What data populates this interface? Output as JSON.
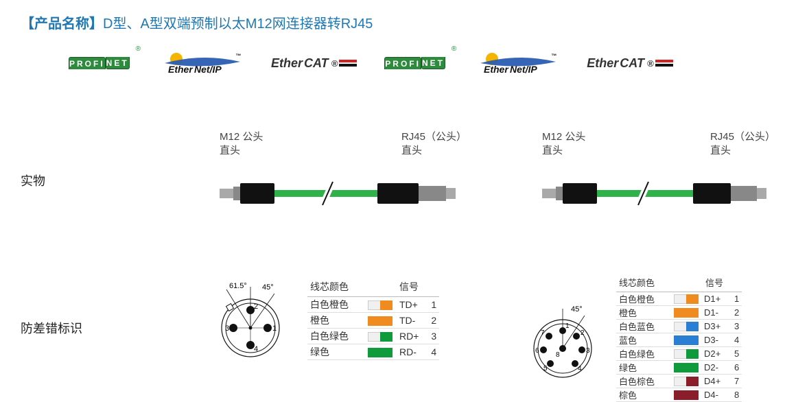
{
  "title": {
    "bracket_open": "【",
    "label": "产品名称",
    "bracket_close": "】",
    "text": "D型、A型双端预制以太M12网连接器转RJ45"
  },
  "brand_color": "#1f77b4",
  "logos": [
    {
      "type": "profinet",
      "top": "PROFI",
      "bot": "NET",
      "color": "#2e8b3d"
    },
    {
      "type": "ethernetip",
      "text1": "Ether",
      "text2": "Net/IP",
      "swoosh": "#2a5db0",
      "globe": "#f4b400"
    },
    {
      "type": "ethercat",
      "text1": "Ether",
      "text2": "CAT",
      "red": "#d32020"
    },
    {
      "type": "profinet",
      "top": "PROFI",
      "bot": "NET",
      "color": "#2e8b3d"
    },
    {
      "type": "ethernetip",
      "text1": "Ether",
      "text2": "Net/IP",
      "swoosh": "#2a5db0",
      "globe": "#f4b400"
    },
    {
      "type": "ethercat",
      "text1": "Ether",
      "text2": "CAT",
      "red": "#d32020"
    }
  ],
  "section_labels": {
    "product": "实物",
    "pinout": "防差错标识"
  },
  "cables": [
    {
      "left": {
        "l1": "M12 公头",
        "l2": "直头"
      },
      "right": {
        "l1": "RJ45（公头）",
        "l2": "直头"
      },
      "cable_color": "#2fb24a",
      "connector_color": "#111",
      "metal_color": "#a9a9a9"
    },
    {
      "left": {
        "l1": "M12 公头",
        "l2": "直头"
      },
      "right": {
        "l1": "RJ45（公头）",
        "l2": "直头"
      },
      "cable_color": "#2fb24a",
      "connector_color": "#111",
      "metal_color": "#a9a9a9"
    }
  ],
  "pinout_a": {
    "angles": [
      "61.5°",
      "45°"
    ],
    "pins": [
      2,
      1,
      3,
      4
    ],
    "header": {
      "color": "线芯颜色",
      "signal": "信号"
    },
    "rows": [
      {
        "name": "白色橙色",
        "swatch": [
          "#f0f0f0",
          "#ef8b1f"
        ],
        "signal": "TD+",
        "num": 1
      },
      {
        "name": "橙色",
        "swatch": [
          "#ef8b1f",
          "#ef8b1f"
        ],
        "signal": "TD-",
        "num": 2
      },
      {
        "name": "白色绿色",
        "swatch": [
          "#f0f0f0",
          "#0f9a3c"
        ],
        "signal": "RD+",
        "num": 3
      },
      {
        "name": "绿色",
        "swatch": [
          "#0f9a3c",
          "#0f9a3c"
        ],
        "signal": "RD-",
        "num": 4
      }
    ]
  },
  "pinout_b": {
    "angle": "45°",
    "pins": [
      1,
      2,
      3,
      4,
      5,
      6,
      7,
      8
    ],
    "header": {
      "color": "线芯颜色",
      "signal": "信号"
    },
    "rows": [
      {
        "name": "白色橙色",
        "swatch": [
          "#f0f0f0",
          "#ef8b1f"
        ],
        "signal": "D1+",
        "num": 1
      },
      {
        "name": "橙色",
        "swatch": [
          "#ef8b1f",
          "#ef8b1f"
        ],
        "signal": "D1-",
        "num": 2
      },
      {
        "name": "白色蓝色",
        "swatch": [
          "#f0f0f0",
          "#2a7fd4"
        ],
        "signal": "D3+",
        "num": 3
      },
      {
        "name": "蓝色",
        "swatch": [
          "#2a7fd4",
          "#2a7fd4"
        ],
        "signal": "D3-",
        "num": 4
      },
      {
        "name": "白色绿色",
        "swatch": [
          "#f0f0f0",
          "#0f9a3c"
        ],
        "signal": "D2+",
        "num": 5
      },
      {
        "name": "绿色",
        "swatch": [
          "#0f9a3c",
          "#0f9a3c"
        ],
        "signal": "D2-",
        "num": 6
      },
      {
        "name": "白色棕色",
        "swatch": [
          "#f0f0f0",
          "#8a1f2b"
        ],
        "signal": "D4+",
        "num": 7
      },
      {
        "name": "棕色",
        "swatch": [
          "#8a1f2b",
          "#8a1f2b"
        ],
        "signal": "D4-",
        "num": 8
      }
    ]
  }
}
